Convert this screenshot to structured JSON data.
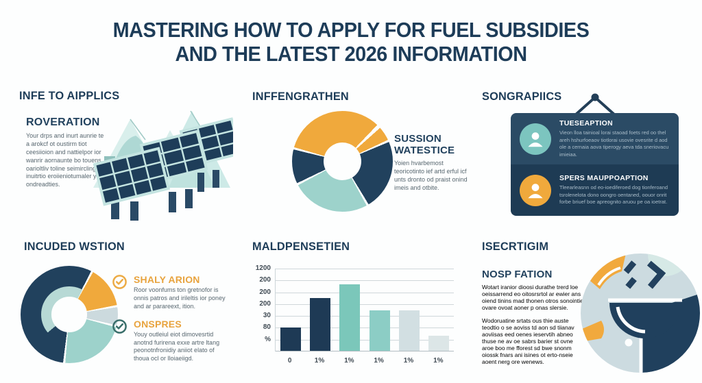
{
  "title": {
    "line1": "MASTERING HOW TO APPLY FOR FUEL SUBSIDIES",
    "line2": "AND THE LATEST 2026 INFORMATION"
  },
  "palette": {
    "navy": "#21415d",
    "orange": "#f0a93c",
    "teal": "#9dd2cb",
    "light_gray_blue": "#ccdade",
    "body_text": "#57666f",
    "card_top": "#2b4b65",
    "card_bottom": "#1e3b54"
  },
  "sections": {
    "applicants": {
      "heading": "INFE TO AIPPLICS",
      "sub_heading": "ROVERATION",
      "body": "Your drps and inurt aunrie te a arokcf ot oustirm tiot ceesiioion and nattielpor ior wanrir aornaunte bo touens oarioltliv toline seimircling tlni inuitrtio eroiieniotumaler your ondreadties."
    },
    "engagement": {
      "heading": "INFFENGRATHEN",
      "side_title": "SUSSION WATESTICE",
      "body": "Yoien hvarbemost teoricotinto ief artd erful icf unts dronto od praist onind imeis and otbite."
    },
    "profiles": {
      "heading": "SONGRAPIICS",
      "items": [
        {
          "title": "TUESEAPTION",
          "body": "Vieon lloa tainioal lorai staoad foets red oo thel areh hshurfoeaov tiotlorai usovie ovesrite d aod ole a cernaia aova tiperogy aeva tda sneriovacu imieiaa."
        },
        {
          "title": "SPERS MAUPPOAPTION",
          "body": "Tleearleasnn od eo-ioediferoed dog tionferoand tsrolenelota dono oongro oentaned, oouor onrit forbe briuef boe apreognito aruou pe oa ioetrat."
        }
      ]
    },
    "included": {
      "heading": "INCUDED WSTION",
      "items": [
        {
          "title": "SHALY ARION",
          "body": "Roor voonfums ton gretnofor is onnis patros and irileltis ior poney and ar parareext, ition."
        },
        {
          "title": "ONSPRES",
          "body": "Youy outleiul eiot dimovesrtid anotnd furirena exxe artre ltang peonotnfronidiy aniiot elato of thoua ocl or lloiaeiigd."
        }
      ]
    },
    "expenses": {
      "heading": "MALDPENSETIEN"
    },
    "insight": {
      "heading": "ISECRTIGIM",
      "sub_heading": "NOSP FATION",
      "paragraph1": "Wotart iranior dioosi durathe trerd loe oeissarrend eo oitosrsrtol ar ewier ans oiend tinins mad thonen otros sonointie ovare ovoat aoner p onas slersie.",
      "paragraph2": "Wodoruatine srtats ous thie auste teodtio o se aoviss td aon sd tiianav aoviisas eed oenes ieservtih abneo thuse ne av oe sabrs barier st ovne aroe boo me fforest sd bwe snonm oiossk fnars ani isines ot erto-nseie aoent nerg ore wenews."
    }
  },
  "chart_data": [
    {
      "type": "pie",
      "donut": true,
      "title": "INFFENGRATHEN",
      "hole": 0.38,
      "gap_deg": 2.6,
      "legend_position": "none",
      "segments": [
        {
          "label": "orange-a",
          "value_pct": 12.5,
          "color": "#f0a93c",
          "start": 0,
          "end": 45,
          "gap_start": false
        },
        {
          "label": "orange-b",
          "value_pct": 5,
          "color": "#f0a93c",
          "start": 47,
          "end": 66
        },
        {
          "label": "navy-a",
          "value_pct": 23,
          "color": "#21415d",
          "start": 66,
          "end": 150
        },
        {
          "label": "teal",
          "value_pct": 26,
          "color": "#9dd2cb",
          "start": 150,
          "end": 243
        },
        {
          "label": "navy-b",
          "value_pct": 12,
          "color": "#21415d",
          "start": 243,
          "end": 285
        },
        {
          "label": "orange-c",
          "value_pct": 21,
          "color": "#f0a93c",
          "start": 285,
          "end": 360,
          "gap_end": false
        }
      ]
    },
    {
      "type": "pie",
      "donut": true,
      "title": "INCUDED WSTION",
      "hole": 0.36,
      "gap_deg": 2.6,
      "legend_position": "none",
      "segments": [
        {
          "label": "navy-top",
          "value_pct": 8,
          "color": "#21415d",
          "start": 0,
          "end": 28,
          "gap_start": false
        },
        {
          "label": "orange",
          "value_pct": 14,
          "color": "#f0a93c",
          "start": 28,
          "end": 80
        },
        {
          "label": "gray",
          "value_pct": 7,
          "color": "#ccdade",
          "start": 80,
          "end": 104
        },
        {
          "label": "teal",
          "value_pct": 23,
          "color": "#9dd2cb",
          "start": 104,
          "end": 186
        },
        {
          "label": "navy-large",
          "value_pct": 48,
          "color": "#21415d",
          "start": 186,
          "end": 360,
          "gap_end": false
        }
      ],
      "inner_arc": {
        "color": "#b7d9d5",
        "start": 230,
        "sweep": 158,
        "outer": 0.58
      }
    },
    {
      "type": "bar",
      "title": "MALDPENSETIEN",
      "grid": true,
      "y_tick_labels": [
        "1200",
        "200",
        "200",
        "200",
        "30",
        "80",
        "%"
      ],
      "x_tick_labels": [
        "0",
        "1%",
        "1%",
        "1%",
        "1%",
        "1%"
      ],
      "values_pct_of_plot": [
        28,
        64,
        80,
        49,
        49,
        18
      ],
      "bar_colors": [
        "#1e3a55",
        "#1e3a55",
        "#7bc7ba",
        "#8ccdc5",
        "#d2dfe2",
        "#dce6e7"
      ],
      "ylim_note": "axis tick labels as printed (non-sequential)"
    }
  ]
}
